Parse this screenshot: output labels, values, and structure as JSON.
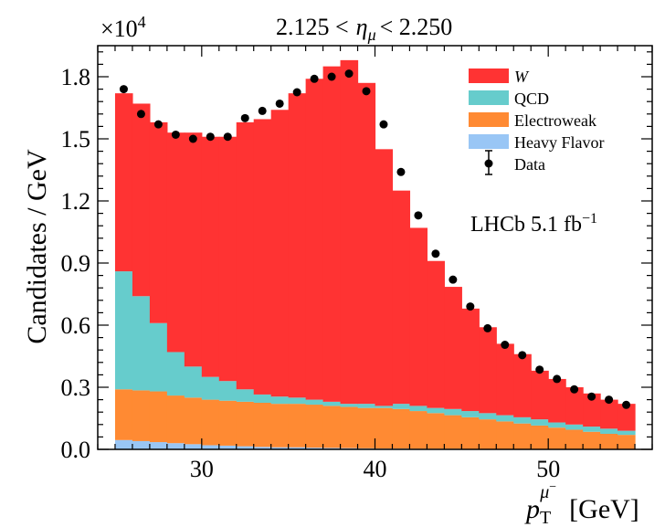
{
  "chart_data": {
    "type": "bar",
    "title_parts": {
      "lo": "2.125 <",
      "sym": "η",
      "sub": "μ",
      "hi": "< 2.250"
    },
    "ylabel": "Candidates / GeV",
    "xlabel_parts": {
      "sym": "p",
      "sub": "T",
      "sup": "μ",
      "supsup": "−",
      "unit": "[GeV]"
    },
    "exponent_label": {
      "base": "×10",
      "exp": "4"
    },
    "experiment_label": {
      "text": "LHCb 5.1 fb",
      "sup": "−1"
    },
    "stacked": true,
    "xlim": [
      24,
      56
    ],
    "ylim": [
      0,
      1.95
    ],
    "bin_edges": [
      25,
      26,
      27,
      28,
      29,
      30,
      31,
      32,
      33,
      34,
      35,
      36,
      37,
      38,
      39,
      40,
      41,
      42,
      43,
      44,
      45,
      46,
      47,
      48,
      49,
      50,
      51,
      52,
      53,
      54,
      55
    ],
    "x_ticks": [
      30,
      40,
      50
    ],
    "y_ticks": [
      "0.0",
      "0.3",
      "0.6",
      "0.9",
      "1.2",
      "1.5",
      "1.8"
    ],
    "series": [
      {
        "name": "Heavy Flavor",
        "color": "#99c6f5",
        "values": [
          0.045,
          0.04,
          0.035,
          0.03,
          0.025,
          0.02,
          0.018,
          0.015,
          0.012,
          0.01,
          0.01,
          0.008,
          0.007,
          0.006,
          0.005,
          0.004,
          0.004,
          0.003,
          0.003,
          0.003,
          0.002,
          0.002,
          0.002,
          0.002,
          0.002,
          0.002,
          0.002,
          0.002,
          0.002,
          0.002
        ]
      },
      {
        "name": "Electroweak",
        "color": "#ff8a33",
        "values": [
          0.245,
          0.245,
          0.245,
          0.23,
          0.225,
          0.22,
          0.217,
          0.215,
          0.213,
          0.21,
          0.21,
          0.208,
          0.203,
          0.199,
          0.195,
          0.196,
          0.191,
          0.182,
          0.172,
          0.162,
          0.153,
          0.143,
          0.133,
          0.123,
          0.113,
          0.103,
          0.093,
          0.083,
          0.073,
          0.068
        ]
      },
      {
        "name": "QCD",
        "color": "#66cccc",
        "values": [
          0.57,
          0.455,
          0.33,
          0.21,
          0.15,
          0.11,
          0.095,
          0.06,
          0.04,
          0.035,
          0.03,
          0.024,
          0.02,
          0.015,
          0.02,
          0.01,
          0.025,
          0.025,
          0.025,
          0.03,
          0.03,
          0.03,
          0.03,
          0.03,
          0.03,
          0.025,
          0.025,
          0.025,
          0.025,
          0.02
        ]
      },
      {
        "name": "W",
        "color": "#ff3333",
        "values": [
          0.86,
          0.93,
          0.97,
          1.06,
          1.13,
          1.16,
          1.18,
          1.29,
          1.33,
          1.385,
          1.47,
          1.55,
          1.62,
          1.66,
          1.55,
          1.24,
          1.03,
          0.86,
          0.71,
          0.59,
          0.495,
          0.415,
          0.345,
          0.305,
          0.235,
          0.21,
          0.18,
          0.16,
          0.14,
          0.13
        ]
      }
    ],
    "data": {
      "name": "Data",
      "x": [
        25.5,
        26.5,
        27.5,
        28.5,
        29.5,
        30.5,
        31.5,
        32.5,
        33.5,
        34.5,
        35.5,
        36.5,
        37.5,
        38.5,
        39.5,
        40.5,
        41.5,
        42.5,
        43.5,
        44.5,
        45.5,
        46.5,
        47.5,
        48.5,
        49.5,
        50.5,
        51.5,
        52.5,
        53.5,
        54.5
      ],
      "y": [
        1.74,
        1.62,
        1.57,
        1.52,
        1.5,
        1.51,
        1.51,
        1.6,
        1.635,
        1.67,
        1.725,
        1.79,
        1.8,
        1.815,
        1.73,
        1.57,
        1.34,
        1.13,
        0.945,
        0.82,
        0.69,
        0.585,
        0.505,
        0.455,
        0.385,
        0.34,
        0.29,
        0.255,
        0.24,
        0.215
      ]
    },
    "legend_position": "top-right",
    "grid": false
  }
}
